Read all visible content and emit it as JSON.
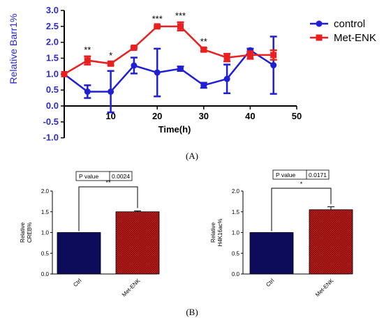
{
  "panel_labels": {
    "a": "(A)",
    "b": "(B)"
  },
  "chart_data": [
    {
      "type": "line",
      "ylabel": "Relative Barr1%",
      "xlabel": "Time(h)",
      "xlim": [
        0,
        50
      ],
      "ylim": [
        -1.0,
        3.0
      ],
      "xticks": [
        "10",
        "20",
        "30",
        "40",
        "50"
      ],
      "yticks": [
        "3.0",
        "2.5",
        "2.0",
        "1.5",
        "1.0",
        "0.5",
        "0.0",
        "-0.5",
        "-1.0"
      ],
      "legend_position": "top-right",
      "series": [
        {
          "name": "control",
          "color": "#1f1fd6",
          "marker": "circle",
          "x": [
            0,
            5,
            10,
            15,
            20,
            25,
            30,
            35,
            40,
            45
          ],
          "y": [
            1.0,
            0.45,
            0.45,
            1.27,
            1.05,
            1.17,
            0.65,
            0.85,
            1.75,
            1.28
          ],
          "err": [
            0,
            0.2,
            0.65,
            0.25,
            0.75,
            0.07,
            0.08,
            0.45,
            0.05,
            0.9
          ]
        },
        {
          "name": "Met-ENK",
          "color": "#e82020",
          "marker": "square",
          "x": [
            0,
            5,
            10,
            15,
            20,
            25,
            30,
            35,
            40,
            45
          ],
          "y": [
            1.0,
            1.43,
            1.33,
            1.83,
            2.5,
            2.5,
            1.77,
            1.52,
            1.6,
            1.6
          ],
          "err": [
            0,
            0.13,
            0.05,
            0.03,
            0.03,
            0.13,
            0.05,
            0.12,
            0.12,
            0.15
          ]
        }
      ],
      "annotations": [
        {
          "text": "**",
          "x": 5
        },
        {
          "text": "*",
          "x": 10
        },
        {
          "text": "***",
          "x": 20
        },
        {
          "text": "***",
          "x": 25
        },
        {
          "text": "**",
          "x": 30
        }
      ]
    },
    {
      "type": "bar",
      "ylabel": "Relative CREB%",
      "categories": [
        "Ctrl",
        "Met-ENK"
      ],
      "values": [
        1.0,
        1.5
      ],
      "err": [
        0,
        0.02
      ],
      "colors": [
        "#0c0c5a",
        "#b01818"
      ],
      "ylim": [
        0,
        2.0
      ],
      "yticks": [
        "2.0",
        "1.5",
        "1.0",
        "0.5",
        "0.0"
      ],
      "p_label": "P value",
      "p_value": "0.0024",
      "significance": "**"
    },
    {
      "type": "bar",
      "ylabel": "Relative H4K16ac%",
      "categories": [
        "Ctrl",
        "Met-ENK"
      ],
      "values": [
        1.0,
        1.55
      ],
      "err": [
        0,
        0.07
      ],
      "colors": [
        "#0c0c5a",
        "#b01818"
      ],
      "ylim": [
        0,
        2.0
      ],
      "yticks": [
        "2.0",
        "1.5",
        "1.0",
        "0.5",
        "0.0"
      ],
      "p_label": "P value",
      "p_value": "0.0171",
      "significance": "*"
    }
  ]
}
